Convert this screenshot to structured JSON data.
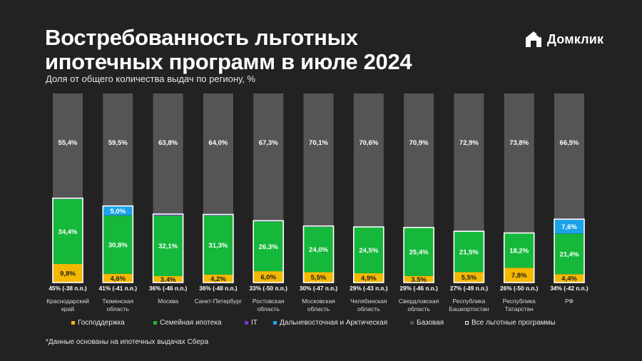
{
  "title": "Востребованность льготных ипотечных программ в июле 2024",
  "subtitle": "Доля от общего количества выдач по региону, %",
  "logo": {
    "text": "Домклик",
    "icon": "house-logo-icon"
  },
  "footnote": "*Данные основаны на ипотечных выдачах Сбера",
  "colors": {
    "background": "#222222",
    "Господдержка": "#f5b800",
    "Семейная ипотека": "#15b83a",
    "IT": "#7a2fd0",
    "Дальневосточная и Арктическая": "#1aa3e8",
    "Базовая": "#555555"
  },
  "legend": [
    {
      "label": "Господдержка",
      "color": "#f5b800",
      "style": "fill"
    },
    {
      "label": "Семейная ипотека",
      "color": "#15b83a",
      "style": "fill"
    },
    {
      "label": "IT",
      "color": "#7a2fd0",
      "style": "fill"
    },
    {
      "label": "Дальневосточная и Арктическая",
      "color": "#1aa3e8",
      "style": "fill"
    },
    {
      "label": "Базовая",
      "color": "#555555",
      "style": "fill"
    },
    {
      "label": "Все льготные программы",
      "color": "#ffffff",
      "style": "outline"
    }
  ],
  "chart_data": {
    "type": "bar",
    "stacked": true,
    "categories": [
      "Краснодарский край",
      "Тюменская область",
      "Москва",
      "Санкт-Петербург",
      "Ростовская область",
      "Московская область",
      "Челябинская область",
      "Свердловская область",
      "Республика Башкортостан",
      "Республика Татарстан",
      "РФ"
    ],
    "series": [
      {
        "name": "Господдержка",
        "values": [
          9.8,
          4.6,
          3.4,
          4.2,
          6.0,
          5.5,
          4.9,
          3.5,
          5.5,
          7.8,
          4.4
        ],
        "labels": [
          "9,8%",
          "4,6%",
          "3,4%",
          "4,2%",
          "6,0%",
          "5,5%",
          "4,9%",
          "3,5%",
          "5,5%",
          "7,8%",
          "4,4%"
        ]
      },
      {
        "name": "Семейная ипотека",
        "values": [
          34.4,
          30.8,
          32.1,
          31.3,
          26.3,
          24.0,
          24.5,
          25.4,
          21.5,
          18.2,
          21.4
        ],
        "labels": [
          "34,4%",
          "30,8%",
          "32,1%",
          "31,3%",
          "26,3%",
          "24,0%",
          "24,5%",
          "25,4%",
          "21,5%",
          "18,2%",
          "21,4%"
        ]
      },
      {
        "name": "IT",
        "values": [
          0.4,
          0.1,
          0.7,
          0.5,
          0.4,
          0.4,
          0.0,
          0.2,
          0.1,
          0.2,
          0.1
        ],
        "labels": [
          "",
          "",
          "",
          "",
          "",
          "",
          "",
          "",
          "",
          "",
          ""
        ]
      },
      {
        "name": "Дальневосточная и Арктическая",
        "values": [
          0,
          5.0,
          0,
          0,
          0,
          0,
          0,
          0,
          0,
          0,
          7.6
        ],
        "labels": [
          "",
          "5,0%",
          "",
          "",
          "",
          "",
          "",
          "",
          "",
          "",
          "7,6%"
        ]
      },
      {
        "name": "Базовая",
        "values": [
          55.4,
          59.5,
          63.8,
          64.0,
          67.3,
          70.1,
          70.6,
          70.9,
          72.9,
          73.8,
          66.5
        ],
        "labels": [
          "55,4%",
          "59,5%",
          "63,8%",
          "64,0%",
          "67,3%",
          "70,1%",
          "70,6%",
          "70,9%",
          "72,9%",
          "73,8%",
          "66,5%"
        ]
      }
    ],
    "totals": [
      "45% (-38 п.п.)",
      "41% (-41 п.п.)",
      "36% (-46 п.п.)",
      "36% (-48 п.п.)",
      "33% (-50 п.п.)",
      "30% (-47 п.п.)",
      "29% (-43 п.п.)",
      "29% (-46 п.п.)",
      "27% (-49 п.п.)",
      "26% (-50 п.п.)",
      "34% (-42 п.п.)"
    ],
    "category_labels": [
      [
        "Краснодарский",
        "край"
      ],
      [
        "Тюменская",
        "область"
      ],
      [
        "Москва"
      ],
      [
        "Санкт-Петербург"
      ],
      [
        "Ростовская",
        "область"
      ],
      [
        "Московская",
        "область"
      ],
      [
        "Челябинская",
        "область"
      ],
      [
        "Свердловская",
        "область"
      ],
      [
        "Республика",
        "Башкортостан"
      ],
      [
        "Республика",
        "Татарстан"
      ],
      [
        "РФ"
      ]
    ],
    "ylim": [
      0,
      100
    ],
    "grid": false,
    "legend_position": "bottom"
  }
}
